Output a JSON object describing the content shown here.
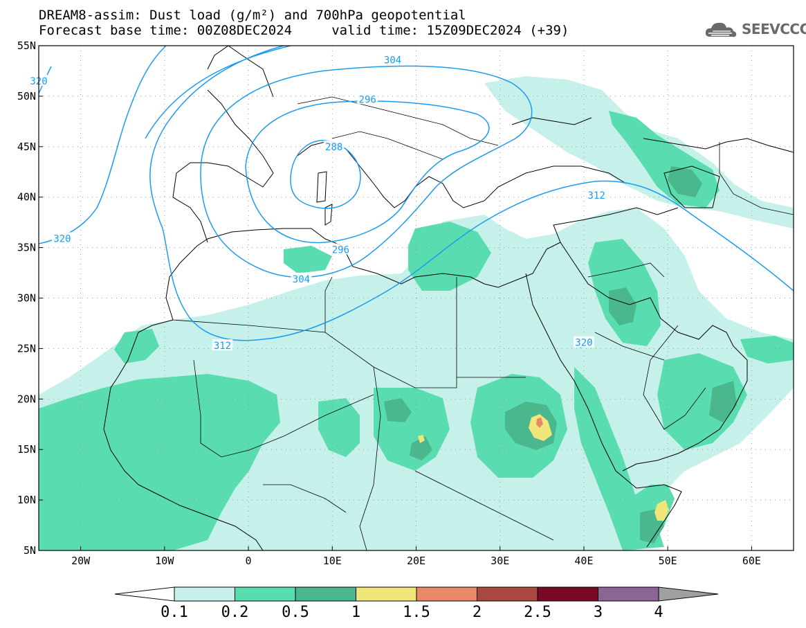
{
  "title_line1": "DREAM8-assim: Dust load (g/m²) and 700hPa geopotential",
  "title_line2": "Forecast base time: 00Z08DEC2024     valid time: 15Z09DEC2024 (+39)",
  "logo_text": "SEEVCCC",
  "map": {
    "lon_range": [
      -25,
      65
    ],
    "lat_range": [
      5,
      55
    ],
    "lat_ticks": [
      {
        "value": 55,
        "label": "55N"
      },
      {
        "value": 50,
        "label": "50N"
      },
      {
        "value": 45,
        "label": "45N"
      },
      {
        "value": 40,
        "label": "40N"
      },
      {
        "value": 35,
        "label": "35N"
      },
      {
        "value": 30,
        "label": "30N"
      },
      {
        "value": 25,
        "label": "25N"
      },
      {
        "value": 20,
        "label": "20N"
      },
      {
        "value": 15,
        "label": "15N"
      },
      {
        "value": 10,
        "label": "10N"
      },
      {
        "value": 5,
        "label": "5N"
      }
    ],
    "lon_ticks": [
      {
        "value": -20,
        "label": "20W"
      },
      {
        "value": -10,
        "label": "10W"
      },
      {
        "value": 0,
        "label": "0"
      },
      {
        "value": 10,
        "label": "10E"
      },
      {
        "value": 20,
        "label": "20E"
      },
      {
        "value": 30,
        "label": "30E"
      },
      {
        "value": 40,
        "label": "40E"
      },
      {
        "value": 50,
        "label": "50E"
      },
      {
        "value": 60,
        "label": "60E"
      }
    ],
    "contour_color": "#1a9bf0",
    "contour_labels": [
      {
        "text": "304",
        "lon": 17.2,
        "lat": 53.6
      },
      {
        "text": "296",
        "lon": 14.2,
        "lat": 49.7
      },
      {
        "text": "288",
        "lon": 10.2,
        "lat": 45.0
      },
      {
        "text": "296",
        "lon": 11.0,
        "lat": 34.8
      },
      {
        "text": "304",
        "lon": 6.3,
        "lat": 31.9
      },
      {
        "text": "312",
        "lon": -3.1,
        "lat": 25.3
      },
      {
        "text": "312",
        "lon": 41.5,
        "lat": 40.2
      },
      {
        "text": "320",
        "lon": -22.2,
        "lat": 35.9
      },
      {
        "text": "320",
        "lon": 40.0,
        "lat": 25.6
      },
      {
        "text": "320",
        "lon": -25.0,
        "lat": 51.5
      }
    ]
  },
  "colorbar": {
    "colors": [
      "#c6f0ea",
      "#58dcb0",
      "#4ab88c",
      "#f0e67a",
      "#e8896a",
      "#a84840",
      "#780a28",
      "#8c6496"
    ],
    "under_color": "#ffffff",
    "over_color": "#a0a0a0",
    "labels": [
      "0.1",
      "0.2",
      "0.5",
      "1",
      "1.5",
      "2",
      "2.5",
      "3",
      "4"
    ]
  }
}
